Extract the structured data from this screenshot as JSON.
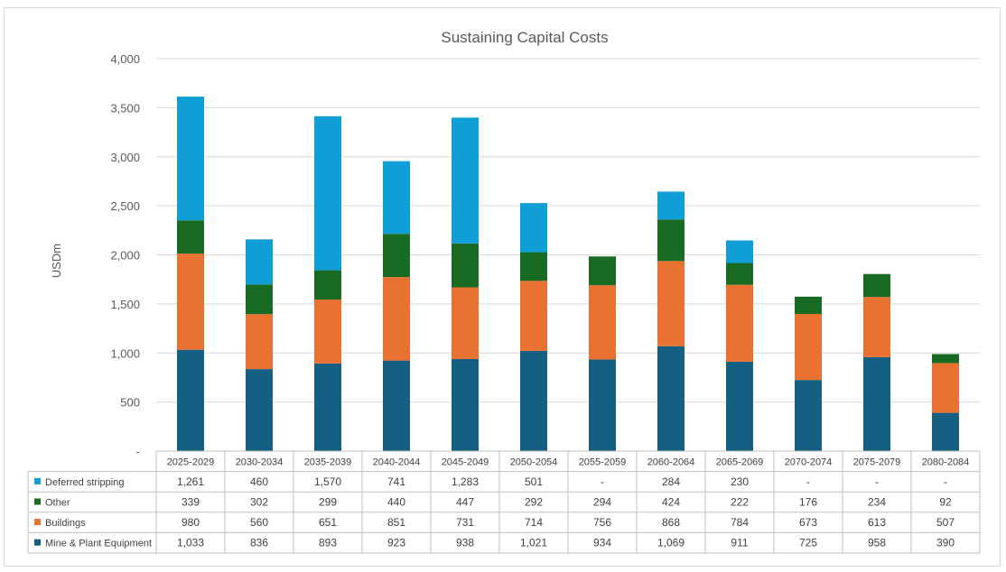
{
  "chart_data": {
    "type": "bar",
    "stacked": true,
    "title": "Sustaining Capital Costs",
    "ylabel": "USDm",
    "xlabel": "",
    "ylim": [
      0,
      4000
    ],
    "yticks": [
      0,
      500,
      1000,
      1500,
      2000,
      2500,
      3000,
      3500,
      4000
    ],
    "ytick_labels": [
      "-",
      "500",
      "1,000",
      "1,500",
      "2,000",
      "2,500",
      "3,000",
      "3,500",
      "4,000"
    ],
    "grid": true,
    "categories": [
      "2025-2029",
      "2030-2034",
      "2035-2039",
      "2040-2044",
      "2045-2049",
      "2050-2054",
      "2055-2059",
      "2060-2064",
      "2065-2069",
      "2070-2074",
      "2075-2079",
      "2080-2084"
    ],
    "series": [
      {
        "name": "Mine & Plant Equipment",
        "color": "#156082",
        "values": [
          1033,
          836,
          893,
          923,
          938,
          1021,
          934,
          1069,
          911,
          725,
          958,
          390
        ],
        "labels": [
          "1,033",
          "836",
          "893",
          "923",
          "938",
          "1,021",
          "934",
          "1,069",
          "911",
          "725",
          "958",
          "390"
        ]
      },
      {
        "name": "Buildings",
        "color": "#E97132",
        "values": [
          980,
          560,
          651,
          851,
          731,
          714,
          756,
          868,
          784,
          673,
          613,
          507
        ],
        "labels": [
          "980",
          "560",
          "651",
          "851",
          "731",
          "714",
          "756",
          "868",
          "784",
          "673",
          "613",
          "507"
        ]
      },
      {
        "name": "Other",
        "color": "#196B24",
        "values": [
          339,
          302,
          299,
          440,
          447,
          292,
          294,
          424,
          222,
          176,
          234,
          92
        ],
        "labels": [
          "339",
          "302",
          "299",
          "440",
          "447",
          "292",
          "294",
          "424",
          "222",
          "176",
          "234",
          "92"
        ]
      },
      {
        "name": "Deferred stripping",
        "color": "#0F9ED5",
        "values": [
          1261,
          460,
          1570,
          741,
          1283,
          501,
          0,
          284,
          230,
          0,
          0,
          0
        ],
        "labels": [
          "1,261",
          "460",
          "1,570",
          "741",
          "1,283",
          "501",
          "-",
          "284",
          "230",
          "-",
          "-",
          "-"
        ]
      }
    ],
    "table_row_order": [
      "Deferred stripping",
      "Other",
      "Buildings",
      "Mine & Plant Equipment"
    ]
  }
}
